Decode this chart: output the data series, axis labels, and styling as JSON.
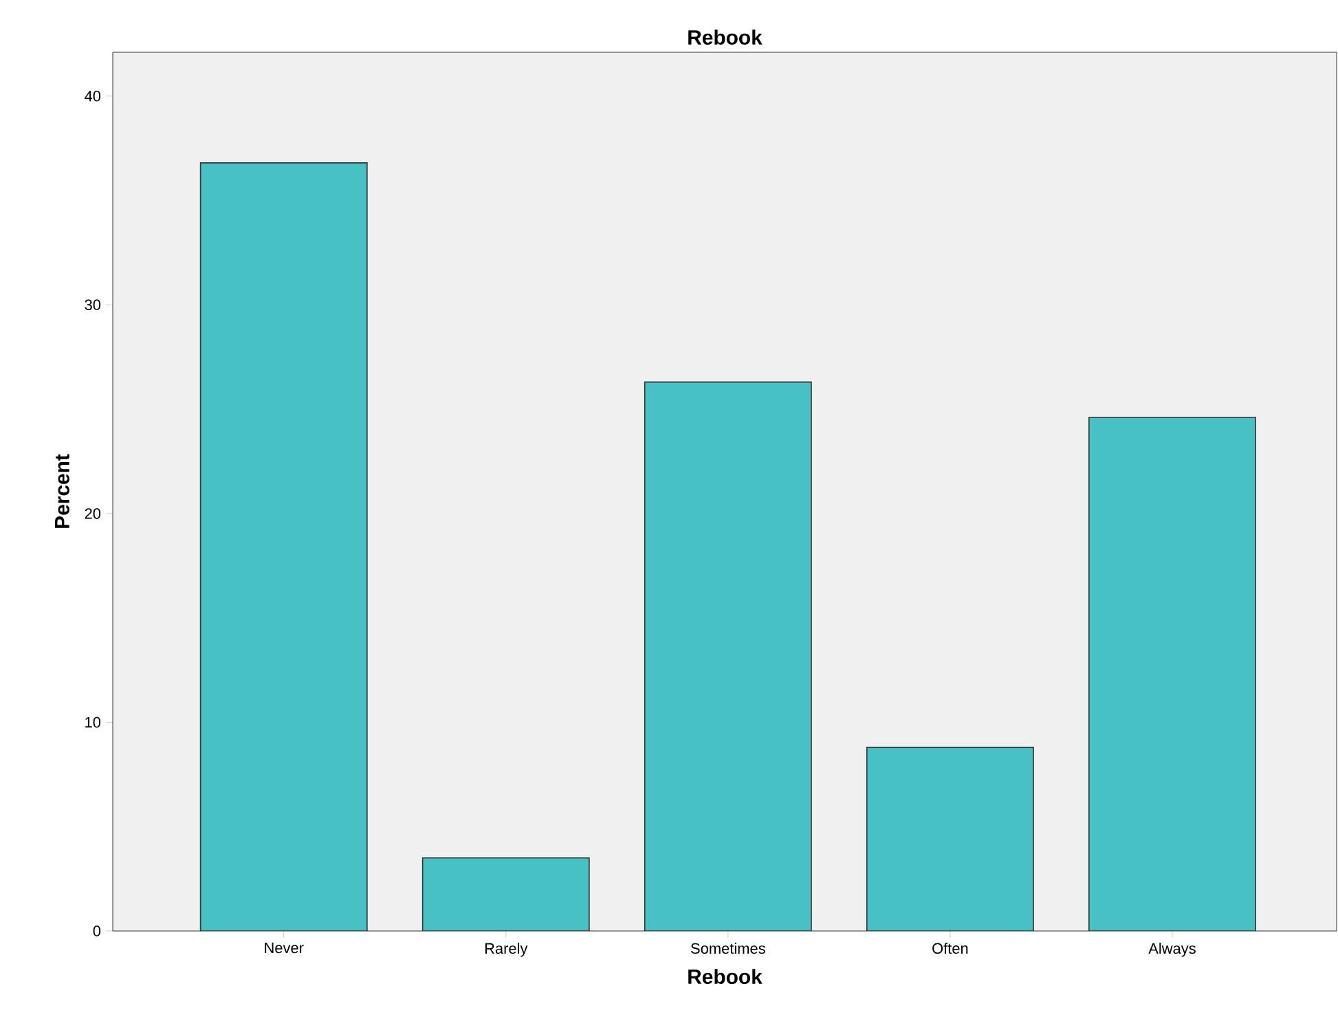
{
  "chart_data": {
    "type": "bar",
    "title": "Rebook",
    "xlabel": "Rebook",
    "ylabel": "Percent",
    "categories": [
      "Never",
      "Rarely",
      "Sometimes",
      "Often",
      "Always"
    ],
    "values": [
      36.8,
      3.5,
      26.3,
      8.8,
      24.6
    ],
    "color": "#48c1c4",
    "ylim": [
      0,
      42.1
    ],
    "yticks": [
      0,
      10,
      20,
      30,
      40
    ]
  }
}
